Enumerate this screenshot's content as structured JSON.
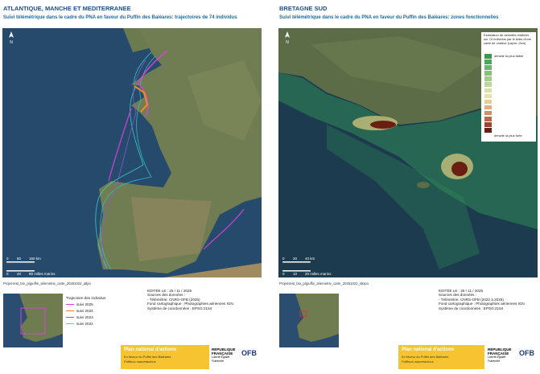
{
  "panels": [
    {
      "title": "ATLANTIQUE, MANCHE ET MEDITERRANEE",
      "subtitle": "Suivi télémétrique dans le cadre du PNA en faveur du Puffin des Baléares: trajectoires de 74 individus",
      "north": "N",
      "scale_km": [
        "0",
        "80",
        "160 km"
      ],
      "scale_nm": [
        "0",
        "40",
        "80 milles marins"
      ],
      "file": "Projet-test_bio_prjpuffin_telemetrie_carte_20251022_atlpo",
      "legend": {
        "title": "Trajectoire des individus",
        "items": [
          "suivi 2025",
          "suivi 2024",
          "suivi 2023",
          "suivi 2022"
        ]
      },
      "edition": [
        "EDITÉE LE : 25 / 11 / 2025",
        "Sources des données :",
        "   - Télémétrie: CNRS-OFB (2025)",
        "Fond cartographique : Photographies aériennes IGN",
        "Système de coordonnées : EPSG:2154"
      ]
    },
    {
      "title": "BRETAGNE SUD",
      "subtitle": "Suivi télémétrique dans le cadre du PNA en faveur du Puffin des Baléares: zones fonctionnelles",
      "north": "N",
      "scale_km": [
        "0",
        "20",
        "40 km"
      ],
      "scale_nm": [
        "0",
        "10",
        "20 milles marins"
      ],
      "file": "Projet-test_bio_prjpuffin_telemetrie_carte_20251022_sbzpo",
      "legend": {
        "title": "Estimation de densités relatives sur 74 individus par le biais d'une carte de chaleur (rayon: 2km)",
        "low": "densité la plus faible",
        "high": "densité la plus forte"
      },
      "edition": [
        "EDITÉE LE : 25 / 11 / 2025",
        "Sources des données :",
        "   - Télémétrie: CNRS-OFB (2022 à 2025)",
        "Fond cartographique : Photographies aériennes IGN",
        "Système de coordonnées : EPSG:2154"
      ]
    }
  ],
  "logos": {
    "pna_title": "Plan national d'actions",
    "pna_sub": "En faveur du Puffin des Baléares",
    "pna_species": "Puffinus mauretanicus",
    "rf": "RÉPUBLIQUE FRANÇAISE",
    "rf_motto": "Liberté Égalité Fraternité",
    "ofb": "OFB"
  }
}
